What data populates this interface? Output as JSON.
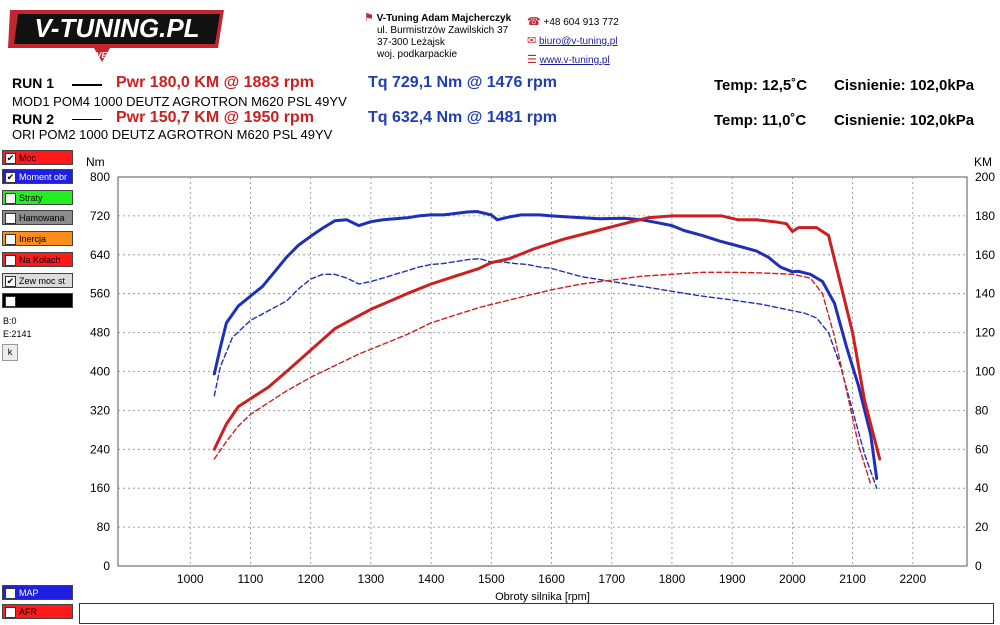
{
  "logo": {
    "text": "V-TUNING.PL",
    "tagline": "DISCOVER THE POWER"
  },
  "contact": {
    "company": "V-Tuning Adam Majcherczyk",
    "street": "ul. Burmistrzów Zawilskich 37",
    "city": "37-300 Leżajsk",
    "region": "woj. podkarpackie",
    "phone": "+48 604 913 772",
    "email": "biuro@v-tuning.pl",
    "web": "www.v-tuning.pl"
  },
  "runs": [
    {
      "label": "RUN 1",
      "pwr": "Pwr  180,0 KM @ 1883 rpm",
      "tq": "Tq 729,1 Nm @ 1476 rpm",
      "temp": "Temp: 12,5˚C",
      "pressure": "Cisnienie: 102,0kPa",
      "desc": "MOD1 POM4 1000 DEUTZ AGROTRON M620 PSL 49YV"
    },
    {
      "label": "RUN 2",
      "pwr": "Pwr  150,7 KM @ 1950 rpm",
      "tq": "Tq 632,4 Nm @ 1481 rpm",
      "temp": "Temp: 11,0˚C",
      "pressure": "Cisnienie: 102,0kPa",
      "desc": "ORI POM2 1000 DEUTZ AGROTRON M620 PSL 49YV"
    }
  ],
  "legend": [
    {
      "label": "Moc",
      "checked": true,
      "color": "#ff1a1a"
    },
    {
      "label": "Moment obr",
      "checked": true,
      "color": "#1f1fe0"
    },
    {
      "label": "Straty",
      "checked": false,
      "color": "#22ee22"
    },
    {
      "label": "Hamowana",
      "checked": false,
      "color": "#8c8c8c"
    },
    {
      "label": "Inercja",
      "checked": false,
      "color": "#ff8c1a"
    },
    {
      "label": "Na Kolach",
      "checked": false,
      "color": "#ff1a1a"
    },
    {
      "label": "Zew moc st",
      "checked": true,
      "color": "#dcdcdc"
    },
    {
      "label": "",
      "checked": false,
      "color": "#000000"
    }
  ],
  "legend_bottom": [
    {
      "label": "MAP",
      "checked": false,
      "color": "#1f1fe0"
    },
    {
      "label": "AFR",
      "checked": false,
      "color": "#ff1a1a"
    }
  ],
  "side_text": {
    "b": "B:0",
    "e": "E:2141",
    "k_button": "k"
  },
  "chart_data": {
    "type": "line",
    "xlabel": "Obroty silnika [rpm]",
    "ylabel_left": "Nm",
    "ylabel_right": "KM",
    "xlim": [
      880,
      2290
    ],
    "xticks": [
      1000,
      1100,
      1200,
      1300,
      1400,
      1500,
      1600,
      1700,
      1800,
      1900,
      2000,
      2100,
      2200
    ],
    "ylim_left": [
      0,
      800
    ],
    "yticks_left": [
      0,
      80,
      160,
      240,
      320,
      400,
      480,
      560,
      640,
      720,
      800
    ],
    "ylim_right": [
      0,
      200
    ],
    "yticks_right": [
      0,
      20,
      40,
      60,
      80,
      100,
      120,
      140,
      160,
      180,
      200
    ],
    "grid": true,
    "series": [
      {
        "run": "RUN 1",
        "quantity": "torque",
        "axis": "left",
        "color": "#1f2fb8",
        "style": "solid",
        "x": [
          1040,
          1050,
          1060,
          1080,
          1100,
          1120,
          1140,
          1160,
          1180,
          1200,
          1220,
          1240,
          1260,
          1280,
          1300,
          1320,
          1340,
          1360,
          1380,
          1400,
          1420,
          1440,
          1460,
          1476,
          1490,
          1500,
          1510,
          1530,
          1550,
          1580,
          1600,
          1640,
          1680,
          1720,
          1750,
          1780,
          1800,
          1820,
          1850,
          1880,
          1910,
          1940,
          1960,
          1980,
          2000,
          2010,
          2030,
          2050,
          2070,
          2090,
          2110,
          2130,
          2140
        ],
        "y": [
          395,
          450,
          500,
          535,
          555,
          575,
          605,
          635,
          660,
          678,
          695,
          710,
          712,
          700,
          708,
          712,
          714,
          716,
          720,
          722,
          722,
          725,
          728,
          729,
          725,
          722,
          712,
          718,
          722,
          722,
          720,
          717,
          714,
          715,
          712,
          705,
          700,
          690,
          680,
          668,
          658,
          648,
          635,
          615,
          605,
          606,
          600,
          585,
          540,
          450,
          370,
          270,
          180
        ]
      },
      {
        "run": "RUN 2",
        "quantity": "torque",
        "axis": "left",
        "color": "#1f2fb8",
        "style": "dashed",
        "x": [
          1040,
          1050,
          1070,
          1100,
          1130,
          1160,
          1180,
          1200,
          1220,
          1240,
          1260,
          1280,
          1300,
          1320,
          1340,
          1360,
          1380,
          1400,
          1420,
          1440,
          1460,
          1481,
          1500,
          1520,
          1540,
          1560,
          1580,
          1600,
          1650,
          1700,
          1750,
          1800,
          1850,
          1900,
          1950,
          2000,
          2020,
          2040,
          2060,
          2080,
          2100,
          2120,
          2140
        ],
        "y": [
          350,
          410,
          470,
          505,
          525,
          545,
          570,
          590,
          600,
          600,
          592,
          580,
          585,
          592,
          600,
          607,
          615,
          620,
          622,
          626,
          630,
          632,
          625,
          625,
          622,
          620,
          615,
          612,
          595,
          585,
          575,
          565,
          555,
          547,
          538,
          525,
          520,
          510,
          480,
          410,
          320,
          230,
          160
        ]
      },
      {
        "run": "RUN 1",
        "quantity": "power",
        "axis": "right",
        "color": "#cc2020",
        "style": "solid",
        "x": [
          1040,
          1060,
          1080,
          1100,
          1130,
          1160,
          1200,
          1240,
          1270,
          1300,
          1330,
          1360,
          1400,
          1440,
          1480,
          1500,
          1530,
          1570,
          1620,
          1670,
          1720,
          1760,
          1800,
          1840,
          1883,
          1910,
          1940,
          1970,
          1990,
          2000,
          2010,
          2040,
          2060,
          2080,
          2100,
          2120,
          2145
        ],
        "y": [
          60,
          73,
          82,
          86,
          92,
          100,
          111,
          122,
          127,
          132,
          136,
          140,
          145,
          149,
          153,
          156,
          158,
          163,
          168,
          172,
          176,
          179,
          180,
          180,
          180,
          178,
          178,
          177,
          176,
          172,
          174,
          174,
          170,
          145,
          120,
          85,
          55
        ]
      },
      {
        "run": "RUN 2",
        "quantity": "power",
        "axis": "right",
        "color": "#cc2020",
        "style": "dashed",
        "x": [
          1040,
          1060,
          1080,
          1100,
          1130,
          1160,
          1200,
          1240,
          1280,
          1320,
          1360,
          1400,
          1440,
          1481,
          1520,
          1560,
          1600,
          1650,
          1700,
          1750,
          1800,
          1850,
          1900,
          1950,
          2000,
          2030,
          2050,
          2070,
          2090,
          2110,
          2130
        ],
        "y": [
          55,
          64,
          72,
          78,
          84,
          90,
          97,
          103,
          109,
          114,
          119,
          125,
          129,
          133,
          136,
          139,
          142,
          145,
          147,
          149,
          150,
          151,
          151,
          150.7,
          150,
          148,
          140,
          118,
          90,
          62,
          42
        ]
      }
    ]
  }
}
